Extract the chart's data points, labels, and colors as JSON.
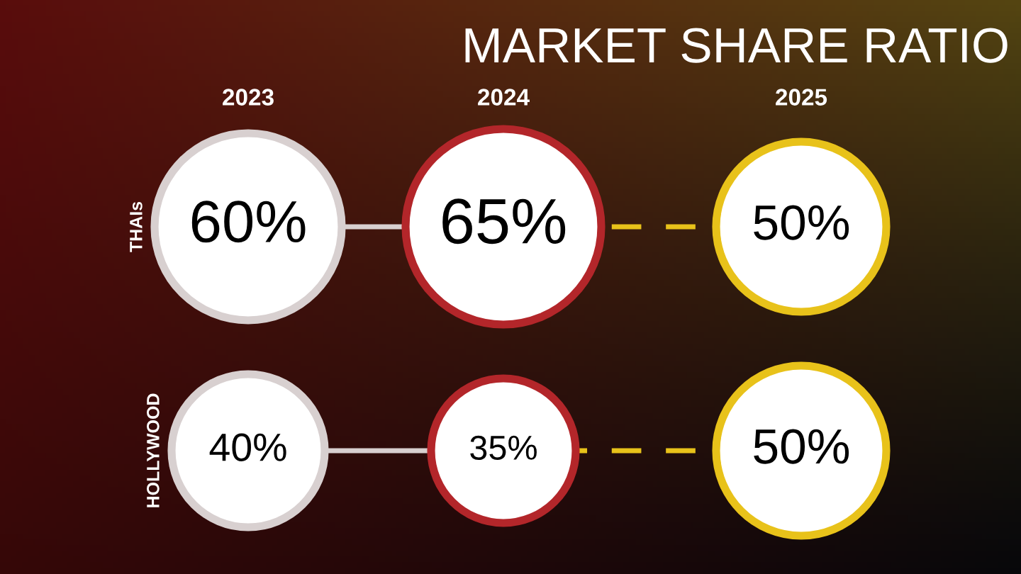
{
  "chart_data": {
    "type": "other",
    "title": "MARKET SHARE RATIO",
    "categories": [
      "2023",
      "2024",
      "2025"
    ],
    "colors": [
      "#d8d0d0",
      "#b3262a",
      "#e8c21a"
    ],
    "series": [
      {
        "name": "THAIs",
        "values": [
          60,
          65,
          50
        ],
        "value_labels": [
          "60%",
          "65%",
          "50%"
        ]
      },
      {
        "name": "HOLLYWOOD",
        "values": [
          40,
          35,
          50
        ],
        "value_labels": [
          "40%",
          "35%",
          "50%"
        ]
      }
    ]
  }
}
